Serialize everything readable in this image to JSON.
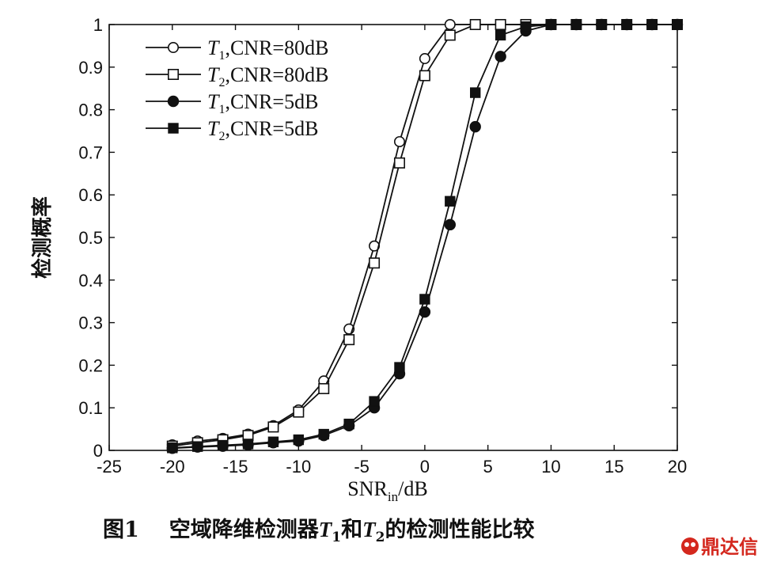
{
  "chart_data": {
    "type": "line",
    "xlabel": "SNR",
    "xlabel_sub": "in",
    "xlabel_suffix": "/dB",
    "ylabel": "检测概率",
    "xlim": [
      -25,
      20
    ],
    "ylim": [
      0,
      1
    ],
    "xticks": [
      "-25",
      "-20",
      "-15",
      "-10",
      "-5",
      "0",
      "5",
      "10",
      "15",
      "20"
    ],
    "yticks": [
      "0",
      "0.1",
      "0.2",
      "0.3",
      "0.4",
      "0.5",
      "0.6",
      "0.7",
      "0.8",
      "0.9",
      "1"
    ],
    "legend_position": "top-left",
    "grid": false,
    "series": [
      {
        "name": "T1,CNR=80dB",
        "label_T": "T",
        "label_sub": "1",
        "label_rest": ",CNR=80dB",
        "marker": "circle-open",
        "x": [
          -20,
          -18,
          -16,
          -14,
          -12,
          -10,
          -8,
          -6,
          -4,
          -2,
          0,
          2,
          4,
          6,
          8,
          10,
          12,
          14,
          16,
          18,
          20
        ],
        "y": [
          0.013,
          0.022,
          0.028,
          0.038,
          0.058,
          0.095,
          0.163,
          0.285,
          0.48,
          0.725,
          0.92,
          1.0,
          1.0,
          1.0,
          1.0,
          1.0,
          1.0,
          1.0,
          1.0,
          1.0,
          1.0
        ]
      },
      {
        "name": "T2,CNR=80dB",
        "label_T": "T",
        "label_sub": "2",
        "label_rest": ",CNR=80dB",
        "marker": "square-open",
        "x": [
          -20,
          -18,
          -16,
          -14,
          -12,
          -10,
          -8,
          -6,
          -4,
          -2,
          0,
          2,
          4,
          6,
          8,
          10,
          12,
          14,
          16,
          18,
          20
        ],
        "y": [
          0.01,
          0.018,
          0.025,
          0.035,
          0.055,
          0.09,
          0.145,
          0.26,
          0.44,
          0.675,
          0.88,
          0.975,
          1.0,
          1.0,
          1.0,
          1.0,
          1.0,
          1.0,
          1.0,
          1.0,
          1.0
        ]
      },
      {
        "name": "T1,CNR=5dB",
        "label_T": "T",
        "label_sub": "1",
        "label_rest": ",CNR=5dB",
        "marker": "circle-filled",
        "x": [
          -20,
          -18,
          -16,
          -14,
          -12,
          -10,
          -8,
          -6,
          -4,
          -2,
          0,
          2,
          4,
          6,
          8,
          10,
          12,
          14,
          16,
          18,
          20
        ],
        "y": [
          0.005,
          0.008,
          0.01,
          0.013,
          0.018,
          0.022,
          0.035,
          0.058,
          0.1,
          0.18,
          0.325,
          0.53,
          0.76,
          0.925,
          0.985,
          1.0,
          1.0,
          1.0,
          1.0,
          1.0,
          1.0
        ]
      },
      {
        "name": "T2,CNR=5dB",
        "label_T": "T",
        "label_sub": "2",
        "label_rest": ",CNR=5dB",
        "marker": "square-filled",
        "x": [
          -20,
          -18,
          -16,
          -14,
          -12,
          -10,
          -8,
          -6,
          -4,
          -2,
          0,
          2,
          4,
          6,
          8,
          10,
          12,
          14,
          16,
          18,
          20
        ],
        "y": [
          0.006,
          0.009,
          0.012,
          0.015,
          0.02,
          0.025,
          0.038,
          0.062,
          0.115,
          0.195,
          0.355,
          0.585,
          0.84,
          0.975,
          0.995,
          1.0,
          1.0,
          1.0,
          1.0,
          1.0,
          1.0
        ]
      }
    ]
  },
  "caption": {
    "fig_label": "图1",
    "text_a": "空域降维检测器",
    "t1_T": "T",
    "t1_sub": "1",
    "text_b": "和",
    "t2_T": "T",
    "t2_sub": "2",
    "text_c": "的检测性能比较"
  },
  "watermark": {
    "text": "鼎达信"
  }
}
